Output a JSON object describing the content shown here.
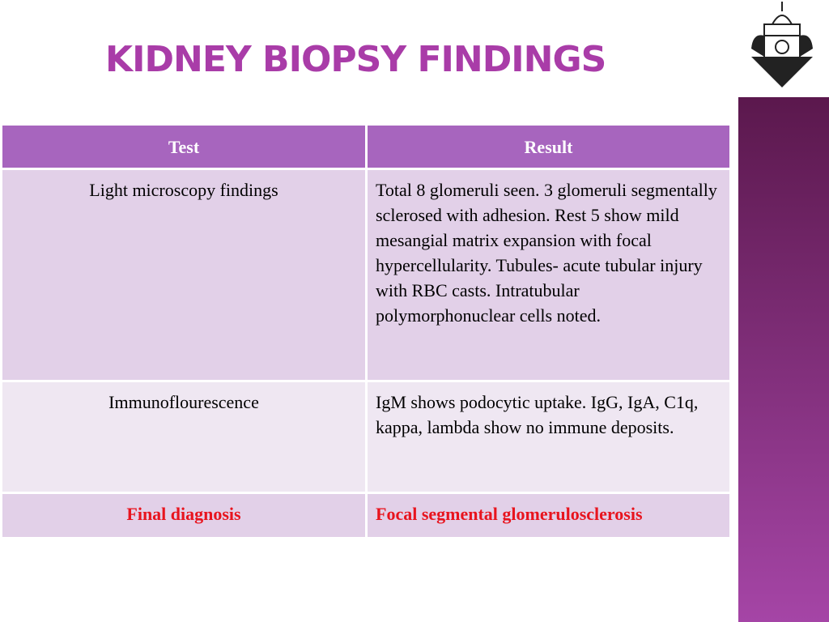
{
  "header": {
    "title": "KIDNEY BIOPSY FINDINGS"
  },
  "table": {
    "columns": [
      "Test",
      "Result"
    ],
    "rows": [
      [
        "Light microscopy findings",
        "Total 8 glomeruli seen. 3 glomeruli segmentally sclerosed with adhesion. Rest 5 show mild mesangial matrix expansion with focal hypercellularity. Tubules- acute tubular injury with RBC casts. Intratubular polymorphonuclear cells noted."
      ],
      [
        "Immunoflourescence",
        "IgM shows podocytic uptake. IgG, IgA, C1q, kappa, lambda show no immune deposits."
      ],
      [
        "Final diagnosis",
        "Focal segmental glomerulosclerosis"
      ]
    ]
  }
}
